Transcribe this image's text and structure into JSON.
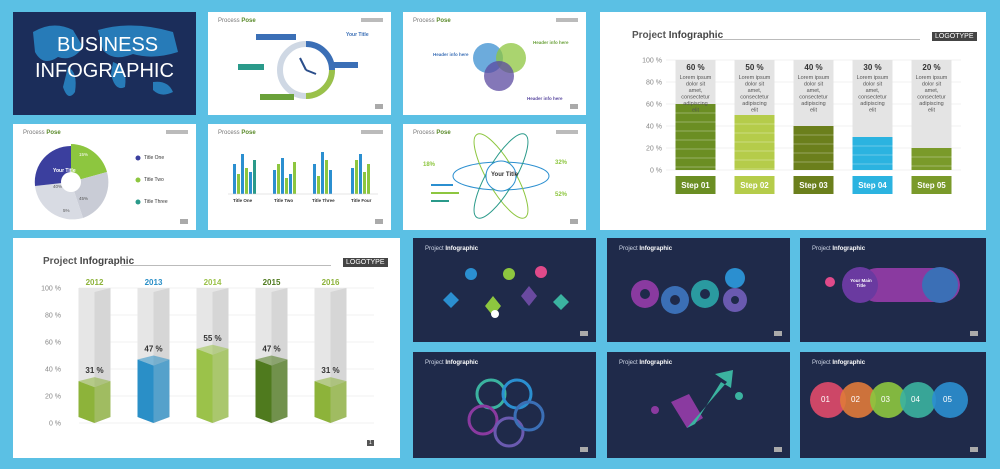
{
  "cover": {
    "line1": "BUSINESS",
    "line2": "INFOGRAPHIC"
  },
  "small_slides": {
    "process_title": "Process",
    "process_title_bold": "Pose",
    "header_info": "Header info here",
    "your_title": "Your Title",
    "title_one": "Title One",
    "title_two": "Title Two",
    "title_three": "Title Three",
    "title_four": "Title Four",
    "pct_18": "18%",
    "pct_32": "32%",
    "pct_52": "52%",
    "pie_values": [
      "15%",
      "40%",
      "45%",
      "5%"
    ],
    "main_title": "Your Main Title",
    "circle_labels": [
      "01",
      "02",
      "03",
      "04",
      "05"
    ]
  },
  "dark_header": {
    "project": "Project",
    "infographic": "Infographic"
  },
  "chart_top": {
    "title_plain": "Project",
    "title_bold": "Infographic",
    "logotype": "LOGOTYPE",
    "page": "1",
    "y_ticks": [
      "100 %",
      "80 %",
      "60 %",
      "40 %",
      "20 %",
      "0 %"
    ]
  },
  "chart_bottom": {
    "title_plain": "Project",
    "title_bold": "Infographic",
    "logotype": "LOGOTYPE",
    "page": "1",
    "y_ticks": [
      "100 %",
      "80 %",
      "60 %",
      "40 %",
      "20 %",
      "0 %"
    ]
  },
  "chart_data": [
    {
      "type": "bar",
      "title": "Project Infographic",
      "categories": [
        "Step 01",
        "Step 02",
        "Step 03",
        "Step 04",
        "Step 05"
      ],
      "values": [
        60,
        50,
        40,
        30,
        20
      ],
      "value_labels": [
        "60 %",
        "50 %",
        "40 %",
        "30 %",
        "20 %"
      ],
      "descriptions": [
        "Lorem ipsum dolor sit amet, consectetur adipiscing elit",
        "Lorem ipsum dolor sit amet, consectetur adipiscing elit",
        "Lorem ipsum dolor sit amet, consectetur adipiscing elit",
        "Lorem ipsum dolor sit amet, consectetur adipiscing elit",
        "Lorem ipsum dolor sit amet, consectetur adipiscing elit"
      ],
      "ylim": [
        0,
        100
      ],
      "colors": [
        "#6b8e23",
        "#b5cc4a",
        "#6b7f1c",
        "#2bb3e0",
        "#7a9a2a"
      ]
    },
    {
      "type": "bar",
      "title": "Project Infographic",
      "categories": [
        "2012",
        "2013",
        "2014",
        "2015",
        "2016"
      ],
      "values": [
        31,
        47,
        55,
        47,
        31
      ],
      "value_labels": [
        "31 %",
        "47 %",
        "55 %",
        "47 %",
        "31 %"
      ],
      "ylim": [
        0,
        100
      ],
      "colors": [
        "#8db33a",
        "#2a8fc7",
        "#9bc24a",
        "#4f7a1e",
        "#8db33a"
      ]
    }
  ]
}
